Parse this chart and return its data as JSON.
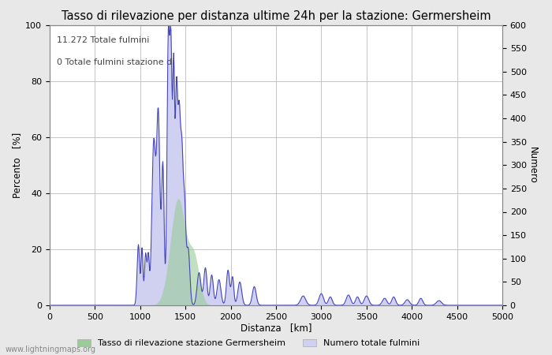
{
  "title": "Tasso di rilevazione per distanza ultime 24h per la stazione: Germersheim",
  "xlabel": "Distanza   [km]",
  "ylabel_left": "Percento   [%]",
  "ylabel_right": "Numero",
  "annotation_line1": "11.272 Totale fulmini",
  "annotation_line2": "0 Totale fulmini stazione di",
  "legend_green": "Tasso di rilevazione stazione Germersheim",
  "legend_blue": "Numero totale fulmini",
  "watermark": "www.lightningmaps.org",
  "xlim": [
    0,
    5000
  ],
  "ylim_left": [
    0,
    100
  ],
  "ylim_right": [
    0,
    600
  ],
  "xticks": [
    0,
    500,
    1000,
    1500,
    2000,
    2500,
    3000,
    3500,
    4000,
    4500,
    5000
  ],
  "yticks_left": [
    0,
    20,
    40,
    60,
    80,
    100
  ],
  "yticks_right": [
    0,
    50,
    100,
    150,
    200,
    250,
    300,
    350,
    400,
    450,
    500,
    550,
    600
  ],
  "bg_color": "#e8e8e8",
  "plot_bg_color": "#ffffff",
  "line_color": "#4444bb",
  "fill_blue_color": "#d0d0f0",
  "fill_green_color": "#99cc99",
  "title_fontsize": 10.5,
  "label_fontsize": 8.5,
  "tick_fontsize": 8
}
